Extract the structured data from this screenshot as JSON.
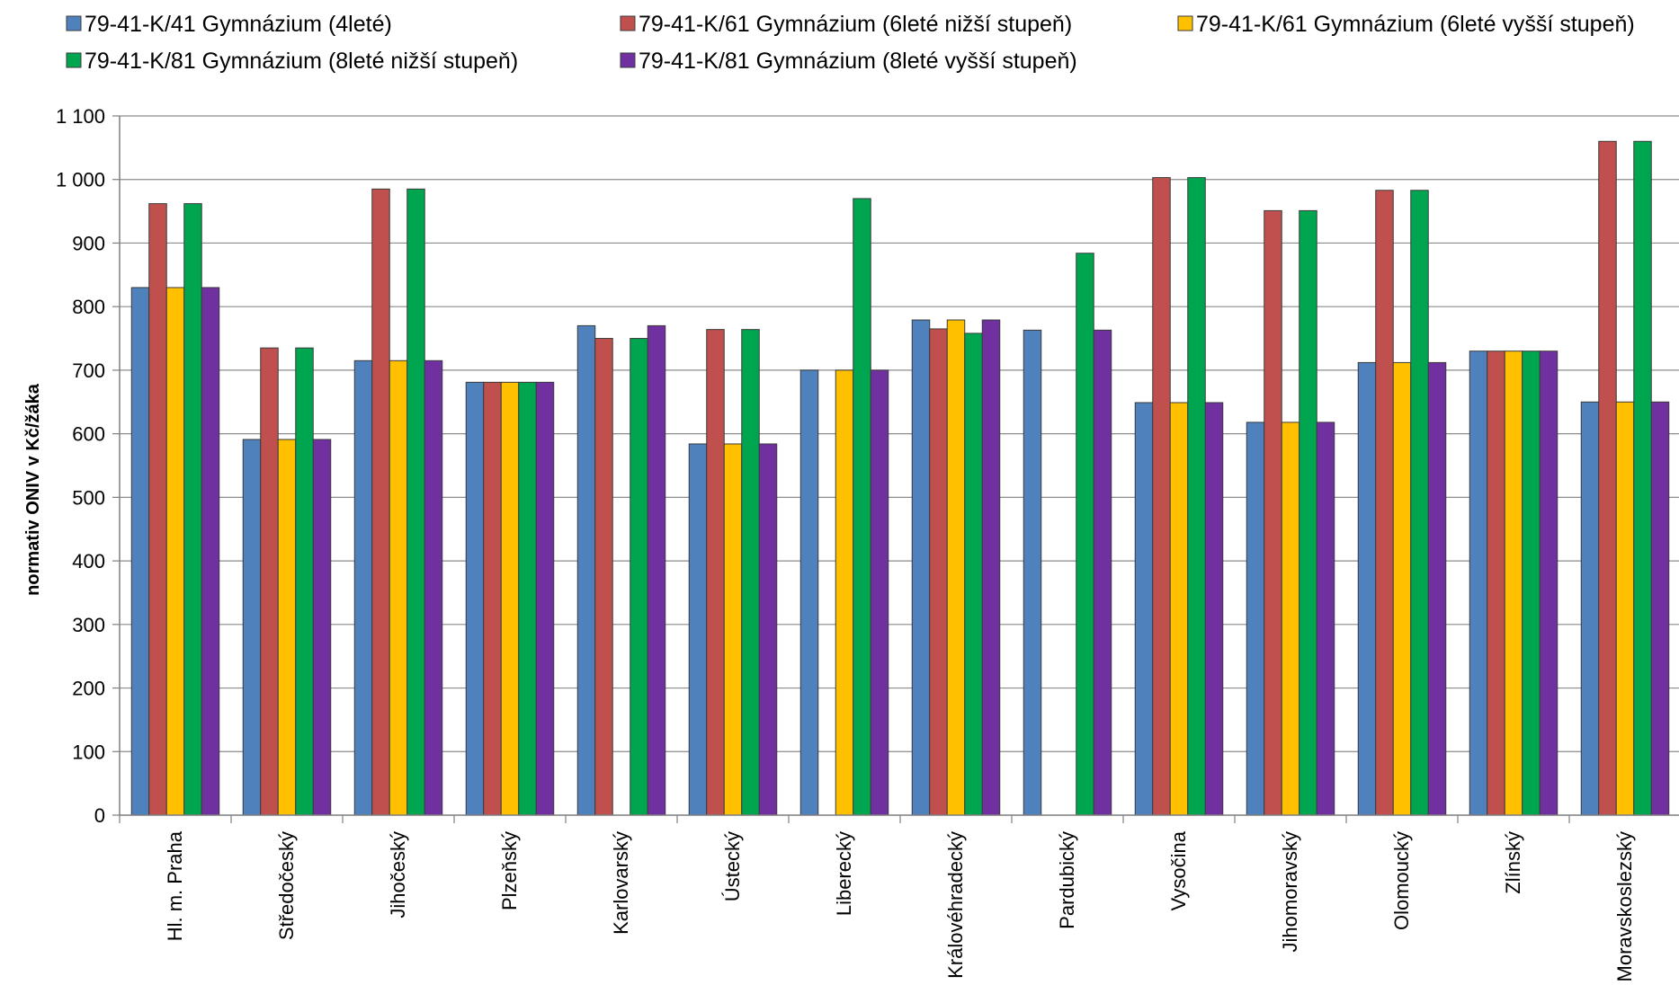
{
  "chart_data": {
    "type": "bar",
    "ylabel": "normativ ONIV v Kč/žáka",
    "ylim": [
      0,
      1100
    ],
    "ytick_step": 100,
    "ytick_labels": [
      "0",
      "100",
      "200",
      "300",
      "400",
      "500",
      "600",
      "700",
      "800",
      "900",
      "1 000",
      "1 100"
    ],
    "grid": true,
    "legend_position": "top",
    "categories": [
      "Hl. m. Praha",
      "Středočeský",
      "Jihočeský",
      "Plzeňský",
      "Karlovarský",
      "Ústecký",
      "Liberecký",
      "Královéhradecký",
      "Pardubický",
      "Vysočina",
      "Jihomoravský",
      "Olomoucký",
      "Zlínský",
      "Moravskoslezský"
    ],
    "series": [
      {
        "name": "79-41-K/41 Gymnázium (4leté)",
        "color": "#4F81BD",
        "values": [
          830,
          591,
          715,
          681,
          770,
          584,
          700,
          779,
          763,
          649,
          618,
          712,
          730,
          650
        ]
      },
      {
        "name": "79-41-K/61 Gymnázium (6leté nižší stupeň)",
        "color": "#C0504D",
        "values": [
          962,
          735,
          985,
          681,
          750,
          764,
          null,
          765,
          null,
          1003,
          951,
          983,
          730,
          1060
        ]
      },
      {
        "name": "79-41-K/61 Gymnázium (6leté vyšší stupeň)",
        "color": "#FFC000",
        "values": [
          830,
          591,
          715,
          681,
          null,
          584,
          700,
          779,
          null,
          649,
          618,
          712,
          730,
          650
        ]
      },
      {
        "name": "79-41-K/81 Gymnázium (8leté nižší stupeň)",
        "color": "#00A550",
        "values": [
          962,
          735,
          985,
          681,
          750,
          764,
          970,
          758,
          884,
          1003,
          951,
          983,
          730,
          1060
        ]
      },
      {
        "name": "79-41-K/81 Gymnázium (8leté vyšší stupeň)",
        "color": "#7030A0",
        "values": [
          830,
          591,
          715,
          681,
          770,
          584,
          700,
          779,
          763,
          649,
          618,
          712,
          730,
          650
        ]
      }
    ]
  }
}
